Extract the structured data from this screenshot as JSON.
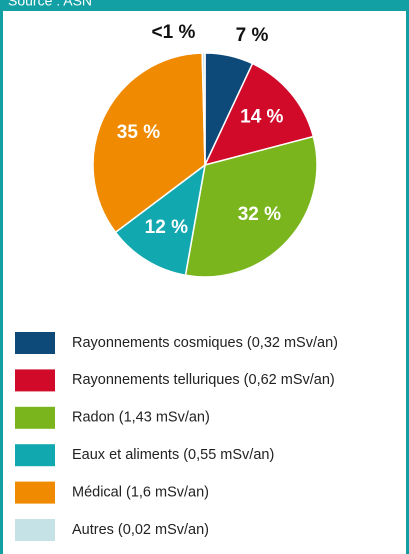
{
  "chart_data": {
    "type": "pie",
    "source": "Source : ASN",
    "categories": [
      "Rayonnements cosmiques (0,32 mSv/an)",
      "Rayonnements telluriques (0,62 mSv/an)",
      "Radon (1,43 mSv/an)",
      "Eaux et aliments (0,55 mSv/an)",
      "Médical (1,6 mSv/an)",
      "Autres (0,02 mSv/an)"
    ],
    "values": [
      7,
      14,
      32,
      12,
      35,
      0.4
    ],
    "value_labels": [
      "7 %",
      "14 %",
      "32 %",
      "12 %",
      "35 %",
      "<1 %"
    ],
    "colors": [
      "#0d4a7a",
      "#d10a2a",
      "#7ab51d",
      "#12a8b0",
      "#f08a00",
      "#c5e3e6"
    ]
  }
}
